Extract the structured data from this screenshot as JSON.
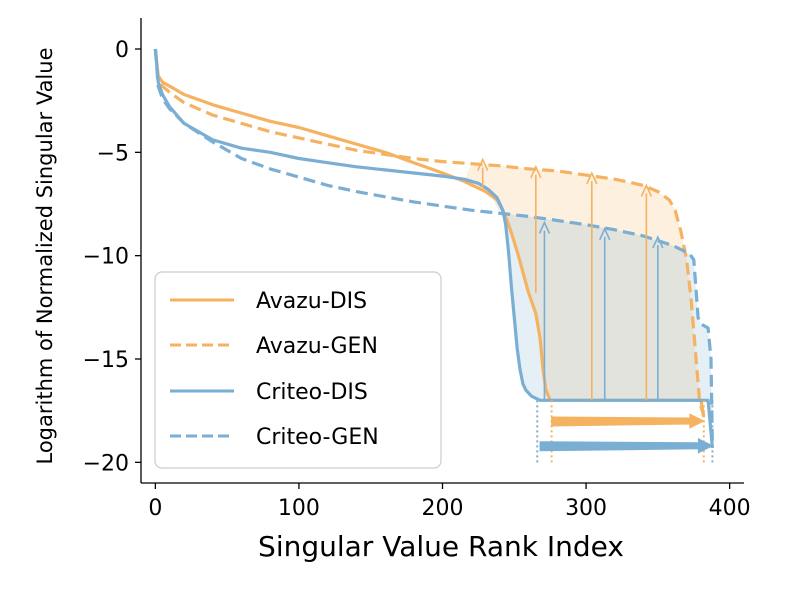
{
  "chart_data": {
    "type": "line",
    "title": "",
    "xlabel": "Singular Value Rank Index",
    "ylabel": "Logarithm of Normalized Singular Value",
    "xlim": [
      -10,
      410
    ],
    "ylim": [
      -21,
      1.5
    ],
    "xticks": [
      {
        "value": 0,
        "label": "0"
      },
      {
        "value": 100,
        "label": "100"
      },
      {
        "value": 200,
        "label": "200"
      },
      {
        "value": 300,
        "label": "300"
      },
      {
        "value": 400,
        "label": "400"
      }
    ],
    "yticks": [
      {
        "value": 0,
        "label": "0"
      },
      {
        "value": -5,
        "label": "−5"
      },
      {
        "value": -10,
        "label": "−10"
      },
      {
        "value": -15,
        "label": "−15"
      },
      {
        "value": -20,
        "label": "−20"
      }
    ],
    "legend_position": "lower-left",
    "colors": {
      "avazu": "#f5b261",
      "criteo": "#7aaed3"
    },
    "series": [
      {
        "name": "Avazu-DIS",
        "style": "solid",
        "color": "#f5b261",
        "x": [
          0,
          2,
          5,
          10,
          20,
          40,
          60,
          80,
          100,
          120,
          140,
          160,
          180,
          200,
          215,
          230,
          238,
          242,
          245,
          248,
          252,
          256,
          260,
          265,
          268,
          270,
          272,
          275,
          300,
          350,
          380,
          382
        ],
        "y": [
          0,
          -1.3,
          -1.6,
          -1.8,
          -2.2,
          -2.7,
          -3.1,
          -3.5,
          -3.8,
          -4.2,
          -4.6,
          -5.0,
          -5.5,
          -6.0,
          -6.4,
          -6.9,
          -7.3,
          -7.8,
          -8.3,
          -8.9,
          -9.8,
          -10.8,
          -11.8,
          -12.8,
          -14.0,
          -15.5,
          -16.5,
          -17.0,
          -17.0,
          -17.0,
          -17.0,
          -17.8
        ]
      },
      {
        "name": "Avazu-GEN",
        "style": "dashed",
        "color": "#f5b261",
        "x": [
          0,
          2,
          5,
          10,
          20,
          40,
          60,
          80,
          100,
          120,
          140,
          160,
          180,
          200,
          220,
          240,
          260,
          280,
          300,
          320,
          340,
          350,
          358,
          362,
          366,
          370,
          373,
          376,
          379,
          382
        ],
        "y": [
          0,
          -1.5,
          -1.8,
          -2.1,
          -2.6,
          -3.2,
          -3.6,
          -4.0,
          -4.3,
          -4.6,
          -4.9,
          -5.1,
          -5.3,
          -5.45,
          -5.55,
          -5.65,
          -5.8,
          -5.9,
          -6.1,
          -6.3,
          -6.6,
          -6.9,
          -7.3,
          -7.8,
          -8.8,
          -10.2,
          -12.0,
          -14.5,
          -17.0,
          -17.8
        ]
      },
      {
        "name": "Criteo-DIS",
        "style": "solid",
        "color": "#7aaed3",
        "x": [
          0,
          2,
          5,
          10,
          20,
          40,
          60,
          80,
          100,
          120,
          140,
          160,
          180,
          200,
          215,
          225,
          232,
          238,
          242,
          244,
          246,
          248,
          250,
          252,
          254,
          256,
          258,
          262,
          268,
          272,
          300,
          350,
          380,
          385,
          388
        ],
        "y": [
          0,
          -1.6,
          -2.2,
          -2.8,
          -3.6,
          -4.4,
          -4.8,
          -5.0,
          -5.3,
          -5.5,
          -5.7,
          -5.85,
          -6.0,
          -6.15,
          -6.3,
          -6.5,
          -6.8,
          -7.2,
          -7.8,
          -8.5,
          -9.8,
          -11.5,
          -13.0,
          -14.5,
          -15.5,
          -16.2,
          -16.5,
          -16.8,
          -17.0,
          -17.0,
          -17.0,
          -17.0,
          -17.0,
          -17.0,
          -19.3
        ]
      },
      {
        "name": "Criteo-GEN",
        "style": "dashed",
        "color": "#7aaed3",
        "x": [
          0,
          2,
          5,
          10,
          20,
          40,
          60,
          80,
          100,
          120,
          140,
          160,
          180,
          200,
          220,
          240,
          260,
          280,
          300,
          320,
          340,
          360,
          372,
          375,
          377,
          378,
          380,
          385,
          387,
          388
        ],
        "y": [
          0,
          -1.8,
          -2.4,
          -2.9,
          -3.6,
          -4.5,
          -5.3,
          -5.8,
          -6.2,
          -6.6,
          -6.9,
          -7.15,
          -7.4,
          -7.6,
          -7.8,
          -7.95,
          -8.1,
          -8.3,
          -8.5,
          -8.75,
          -9.05,
          -9.5,
          -9.9,
          -10.2,
          -12.0,
          -13.0,
          -13.3,
          -13.5,
          -15.0,
          -19.3
        ]
      }
    ],
    "up_arrows": [
      {
        "x": 228,
        "from": -6.7,
        "to": -5.35,
        "series": "Avazu"
      },
      {
        "x": 265,
        "from": -11.8,
        "to": -5.7,
        "series": "Avazu"
      },
      {
        "x": 304,
        "from": -17.0,
        "to": -6.0,
        "series": "Avazu"
      },
      {
        "x": 342,
        "from": -17.0,
        "to": -6.6,
        "series": "Avazu"
      },
      {
        "x": 271,
        "from": -17.0,
        "to": -8.4,
        "series": "Criteo"
      },
      {
        "x": 313,
        "from": -17.0,
        "to": -8.7,
        "series": "Criteo"
      },
      {
        "x": 350,
        "from": -17.0,
        "to": -9.1,
        "series": "Criteo"
      }
    ],
    "rank_arrows": [
      {
        "series": "Avazu",
        "x_from": 276,
        "x_to": 382,
        "y": -18.0
      },
      {
        "series": "Criteo",
        "x_from": 268,
        "x_to": 388,
        "y": -19.2
      }
    ],
    "rank_markers": [
      {
        "series": "Avazu",
        "x": 276
      },
      {
        "series": "Avazu",
        "x": 382
      },
      {
        "series": "Criteo",
        "x": 266
      },
      {
        "series": "Criteo",
        "x": 388
      }
    ]
  }
}
